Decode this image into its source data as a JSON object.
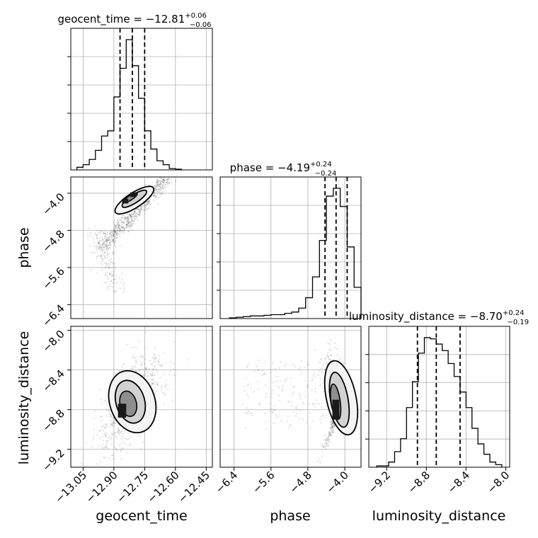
{
  "chart_data": {
    "type": "corner",
    "parameters": [
      {
        "name": "geocent_time",
        "median": -12.81,
        "plus": "+0.06",
        "minus": "−0.06",
        "title_main": "geocent_time = −12.81",
        "range": [
          -13.11,
          -12.42
        ],
        "ticks": [
          -13.05,
          -12.9,
          -12.75,
          -12.6,
          -12.45
        ],
        "tick_labels": [
          "−13.05",
          "−12.90",
          "−12.75",
          "−12.60",
          "−12.45"
        ],
        "quantiles": [
          -12.87,
          -12.81,
          -12.75
        ],
        "hist_edges": [
          -13.08,
          -13.05,
          -13.02,
          -12.99,
          -12.96,
          -12.93,
          -12.9,
          -12.87,
          -12.84,
          -12.81,
          -12.78,
          -12.75,
          -12.72,
          -12.69,
          -12.66,
          -12.63,
          -12.6,
          -12.57
        ],
        "hist_counts": [
          2,
          4,
          8,
          15,
          26,
          30,
          56,
          78,
          100,
          80,
          55,
          30,
          16,
          7,
          4,
          1,
          0.5
        ]
      },
      {
        "name": "phase",
        "median": -4.19,
        "plus": "+0.24",
        "minus": "−0.24",
        "title_main": "phase = −4.19",
        "range": [
          -6.7,
          -3.65
        ],
        "ticks": [
          -6.4,
          -5.6,
          -4.8,
          -4.0
        ],
        "tick_labels": [
          "−6.4",
          "−5.6",
          "−4.8",
          "−4.0"
        ],
        "quantiles": [
          -4.43,
          -4.19,
          -3.95
        ],
        "hist_edges": [
          -6.5,
          -6.35,
          -6.2,
          -6.05,
          -5.9,
          -5.75,
          -5.6,
          -5.45,
          -5.3,
          -5.15,
          -5.0,
          -4.85,
          -4.7,
          -4.55,
          -4.4,
          -4.25,
          -4.1,
          -3.95,
          -3.8,
          -3.65
        ],
        "hist_counts": [
          0.5,
          1,
          1.5,
          2,
          2,
          2.5,
          3,
          3,
          4,
          5,
          8,
          16,
          32,
          60,
          94,
          100,
          86,
          55,
          24
        ]
      },
      {
        "name": "luminosity_distance",
        "median": -8.7,
        "plus": "+0.24",
        "minus": "−0.19",
        "title_main": "luminosity_distance = −8.70",
        "range": [
          -9.38,
          -7.96
        ],
        "ticks": [
          -9.2,
          -8.8,
          -8.4,
          -8.0
        ],
        "tick_labels": [
          "−9.2",
          "−8.8",
          "−8.4",
          "−8.0"
        ],
        "quantiles": [
          -8.89,
          -8.7,
          -8.46
        ],
        "hist_edges": [
          -9.3,
          -9.24,
          -9.18,
          -9.12,
          -9.06,
          -9.0,
          -8.94,
          -8.88,
          -8.82,
          -8.76,
          -8.7,
          -8.64,
          -8.58,
          -8.52,
          -8.46,
          -8.4,
          -8.34,
          -8.28,
          -8.22,
          -8.16,
          -8.1,
          -8.04
        ],
        "hist_counts": [
          1,
          1,
          4,
          12,
          22,
          46,
          66,
          88,
          100,
          99,
          95,
          90,
          80,
          70,
          58,
          46,
          30,
          18,
          10,
          4,
          2
        ]
      }
    ],
    "grid": true,
    "contour_levels": [
      "1σ",
      "1.5σ",
      "2σ"
    ],
    "scatter_points": 1800
  }
}
